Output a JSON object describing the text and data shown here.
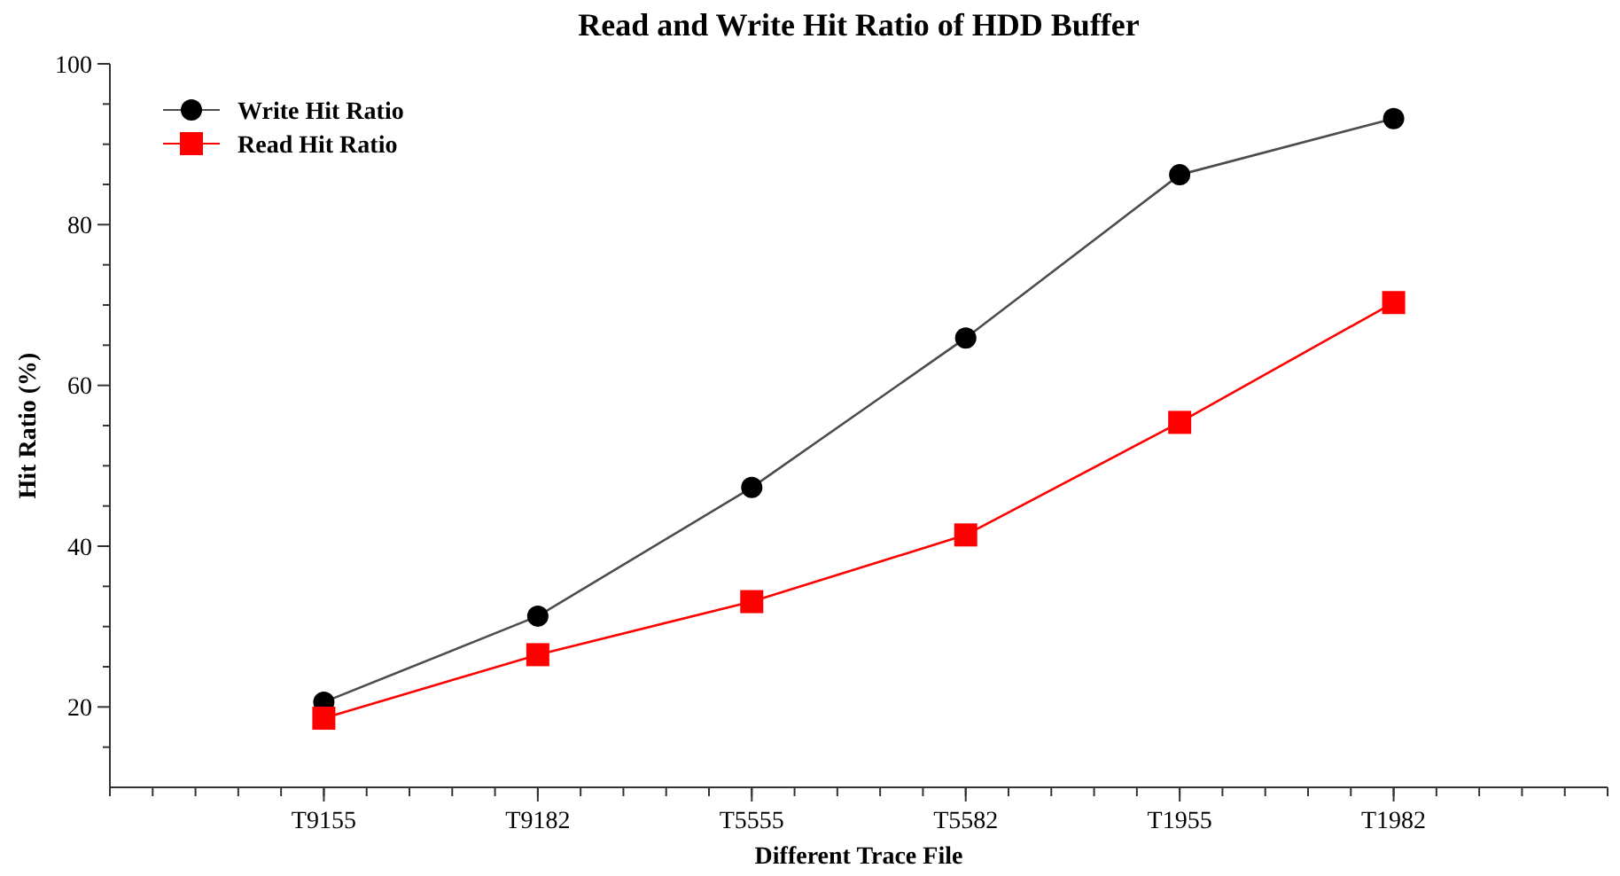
{
  "chart_data": {
    "type": "line",
    "title": "Read and Write Hit Ratio of HDD Buffer",
    "xlabel": "Different Trace File",
    "ylabel": "Hit Ratio (%)",
    "categories": [
      "T9155",
      "T9182",
      "T5555",
      "T5582",
      "T1955",
      "T1982"
    ],
    "series": [
      {
        "name": "Write Hit Ratio",
        "color": "#000000",
        "marker": "circle",
        "values": [
          20.6,
          31.3,
          47.3,
          65.9,
          86.2,
          93.2
        ]
      },
      {
        "name": "Read Hit Ratio",
        "color": "#ff0000",
        "marker": "square",
        "values": [
          18.6,
          26.5,
          33.1,
          41.4,
          55.4,
          70.3
        ]
      }
    ],
    "ylim": [
      10,
      100
    ],
    "yticks": [
      {
        "value": 15,
        "label": null
      },
      20,
      {
        "value": 25,
        "label": null
      },
      {
        "value": 30,
        "label": null
      },
      {
        "value": 35,
        "label": null
      },
      40,
      {
        "value": 45,
        "label": null
      },
      {
        "value": 50,
        "label": null
      },
      {
        "value": 55,
        "label": null
      },
      60,
      {
        "value": 65,
        "label": null
      },
      {
        "value": 70,
        "label": null
      },
      {
        "value": 75,
        "label": null
      },
      80,
      {
        "value": 85,
        "label": null
      },
      {
        "value": 90,
        "label": null
      },
      {
        "value": 95,
        "label": null
      },
      100
    ],
    "grid": false,
    "legend": "top left",
    "line_style": "solid"
  }
}
